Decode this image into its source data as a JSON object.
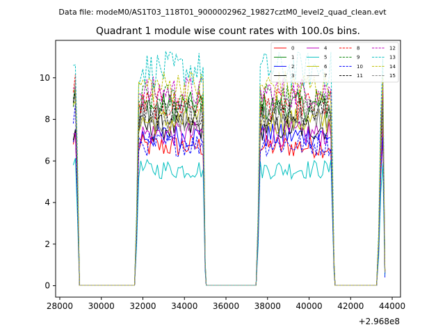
{
  "figure": {
    "suptitle": "Data file: modeM0/AS1T03_118T01_9000002962_19827cztM0_level2_quad_clean.evt"
  },
  "chart_data": {
    "type": "line",
    "title": "Quadrant 1 module wise count rates with 100.0s bins.",
    "xlabel": "",
    "ylabel": "",
    "x_offset_label": "+2.968e8",
    "xlim": [
      27800,
      44400
    ],
    "ylim": [
      -0.55,
      11.8
    ],
    "xticks": [
      28000,
      30000,
      32000,
      34000,
      36000,
      38000,
      40000,
      42000,
      44000
    ],
    "xtick_labels": [
      "28000",
      "30000",
      "32000",
      "34000",
      "36000",
      "38000",
      "40000",
      "42000",
      "44000"
    ],
    "yticks": [
      0,
      2,
      4,
      6,
      8,
      10
    ],
    "ytick_labels": [
      "0",
      "2",
      "4",
      "6",
      "8",
      "10"
    ],
    "bin_size_s": 100,
    "intervals": [
      [
        28650,
        28950
      ],
      [
        31600,
        35000
      ],
      [
        37450,
        41200
      ],
      [
        43250,
        43650
      ]
    ],
    "gaps": [
      [
        28950,
        31600
      ],
      [
        35000,
        37450
      ],
      [
        41200,
        43250
      ]
    ],
    "legend": {
      "location": "upper-right",
      "columns": 4
    },
    "series": [
      {
        "name": "0",
        "color": "#ff0000",
        "dash": "solid",
        "level": 6.7,
        "start": 6.8,
        "end": 0.7
      },
      {
        "name": "1",
        "color": "#008000",
        "dash": "solid",
        "level": 8.6,
        "start": 8.6,
        "end": 0.6
      },
      {
        "name": "2",
        "color": "#0000ff",
        "dash": "solid",
        "level": 7.2,
        "start": 6.9,
        "end": 0.4
      },
      {
        "name": "3",
        "color": "#000000",
        "dash": "solid",
        "level": 7.6,
        "start": 7.0,
        "end": 0.6
      },
      {
        "name": "4",
        "color": "#bf00bf",
        "dash": "solid",
        "level": 7.3,
        "start": 7.3,
        "end": 0.6
      },
      {
        "name": "5",
        "color": "#00bfbf",
        "dash": "solid",
        "level": 5.6,
        "start": 5.8,
        "end": 0.5
      },
      {
        "name": "6",
        "color": "#bfbf00",
        "dash": "solid",
        "level": 7.9,
        "start": 8.7,
        "end": 0.6
      },
      {
        "name": "7",
        "color": "#808080",
        "dash": "solid",
        "level": 8.1,
        "start": 8.8,
        "end": 0.6
      },
      {
        "name": "8",
        "color": "#ff0000",
        "dash": "dashed",
        "level": 8.7,
        "start": 9.3,
        "end": 0.7
      },
      {
        "name": "9",
        "color": "#008000",
        "dash": "dashed",
        "level": 9.0,
        "start": 9.0,
        "end": 0.7
      },
      {
        "name": "10",
        "color": "#0000ff",
        "dash": "dashed",
        "level": 6.8,
        "start": 7.8,
        "end": 0.5
      },
      {
        "name": "11",
        "color": "#000000",
        "dash": "dashed",
        "level": 8.4,
        "start": 8.8,
        "end": 0.7
      },
      {
        "name": "12",
        "color": "#bf00bf",
        "dash": "dashed",
        "level": 9.3,
        "start": 9.5,
        "end": 0.7
      },
      {
        "name": "13",
        "color": "#00bfbf",
        "dash": "dashed",
        "level": 10.4,
        "start": 10.6,
        "end": 0.6
      },
      {
        "name": "14",
        "color": "#bfbf00",
        "dash": "dashed",
        "level": 9.6,
        "start": 9.4,
        "end": 0.7
      },
      {
        "name": "15",
        "color": "#808080",
        "dash": "dashed",
        "level": 8.3,
        "start": 8.9,
        "end": 0.6
      }
    ]
  }
}
